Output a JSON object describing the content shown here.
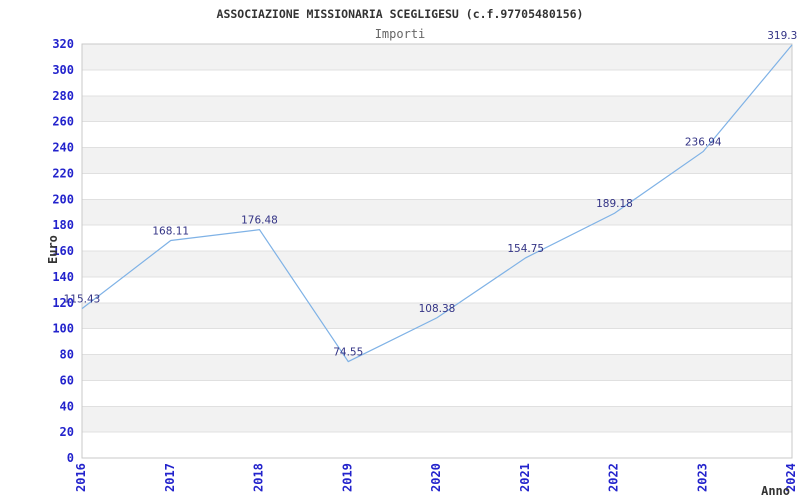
{
  "chart_data": {
    "type": "line",
    "title": "ASSOCIAZIONE MISSIONARIA SCEGLIGESU (c.f.97705480156)",
    "subtitle": "Importi",
    "xlabel": "Anno",
    "ylabel": "Euro",
    "categories": [
      "2016",
      "2017",
      "2018",
      "2019",
      "2020",
      "2021",
      "2022",
      "2023",
      "2024"
    ],
    "series": [
      {
        "name": "Importi",
        "values": [
          115.43,
          168.11,
          176.48,
          74.55,
          108.38,
          154.75,
          189.18,
          236.94,
          319.3
        ]
      }
    ],
    "point_labels": [
      "115.43",
      "168.11",
      "176.48",
      "74.55",
      "108.38",
      "154.75",
      "189.18",
      "236.94",
      "319.3"
    ],
    "ylim": [
      0,
      320
    ],
    "ytick_step": 20,
    "grid": "horizontal-bands-alternating",
    "legend": "none",
    "markers": "none",
    "colors": {
      "line": "#7fb2e6",
      "tick_label": "#2323cc",
      "point_label": "#333385",
      "band": "#f2f2f2",
      "band_alt": "#ffffff",
      "gridline": "#e0e0e0",
      "plot_border": "#c9c9c9",
      "title": "#333333",
      "subtitle": "#666666",
      "axis_title": "#333333",
      "background": "#ffffff"
    }
  }
}
